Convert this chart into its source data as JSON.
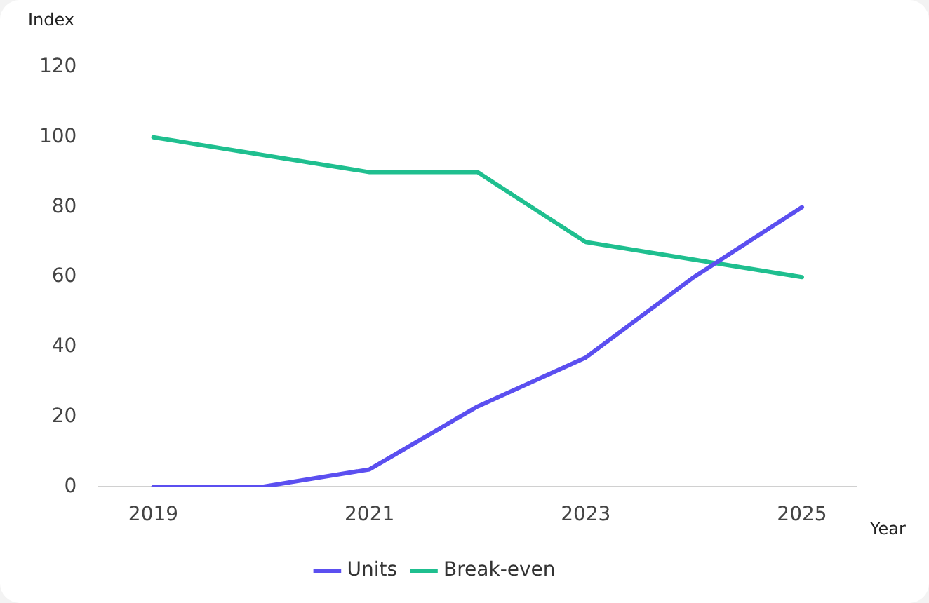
{
  "chart_data": {
    "type": "line",
    "xlabel": "Year",
    "ylabel": "Index",
    "x": [
      2019,
      2020,
      2021,
      2022,
      2023,
      2024,
      2025
    ],
    "xlim": [
      2018.5,
      2025.5
    ],
    "xticks": [
      2019,
      2021,
      2023,
      2025
    ],
    "ylim": [
      0,
      120
    ],
    "yticks": [
      0,
      20,
      40,
      60,
      80,
      100,
      120
    ],
    "series": [
      {
        "name": "Units",
        "color": "#5b4ff0",
        "values": [
          0,
          0,
          5,
          23,
          37,
          60,
          80
        ]
      },
      {
        "name": "Break-even",
        "color": "#1fbf8f",
        "values": [
          100,
          95,
          90,
          90,
          70,
          65,
          60
        ]
      }
    ],
    "grid": false,
    "legend": "bottom",
    "marker": "none",
    "line_style": "solid"
  }
}
